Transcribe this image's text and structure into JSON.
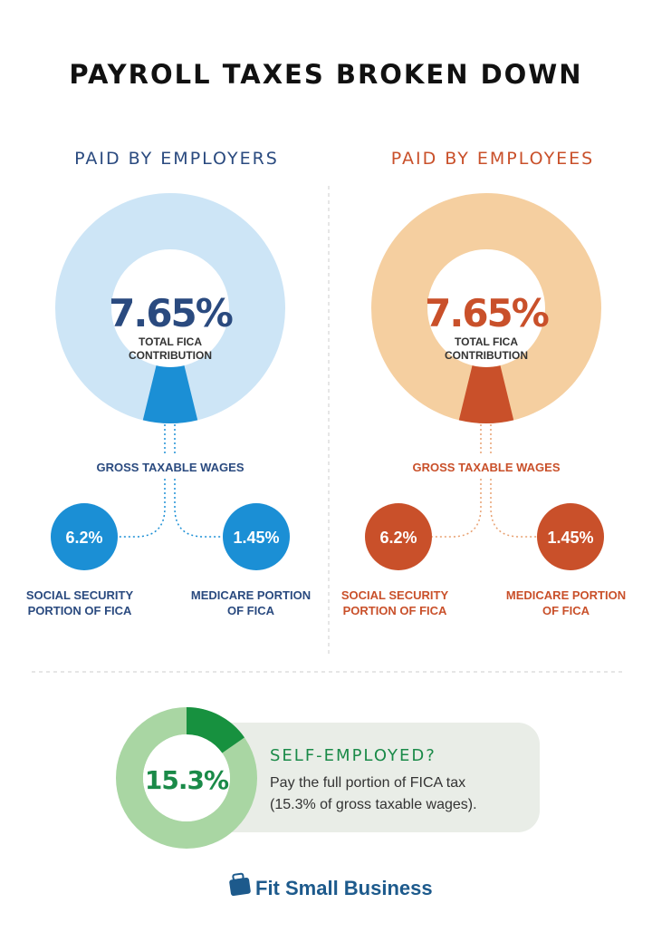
{
  "title": "PAYROLL TAXES BROKEN DOWN",
  "employers": {
    "heading": "PAID BY EMPLOYERS",
    "total": "7.65%",
    "total_percent": 7.65,
    "total_label_1": "TOTAL FICA",
    "total_label_2": "CONTRIBUTION",
    "wages_label": "GROSS TAXABLE WAGES",
    "ss_value": "6.2%",
    "ss_label_1": "SOCIAL SECURITY",
    "ss_label_2": "PORTION OF FICA",
    "med_value": "1.45%",
    "med_label_1": "MEDICARE PORTION",
    "med_label_2": "OF FICA",
    "colors": {
      "text": "#2a4a7f",
      "ring": "#cde5f6",
      "accent": "#1b8fd5"
    }
  },
  "employees": {
    "heading": "PAID BY EMPLOYEES",
    "total": "7.65%",
    "total_percent": 7.65,
    "total_label_1": "TOTAL FICA",
    "total_label_2": "CONTRIBUTION",
    "wages_label": "GROSS TAXABLE WAGES",
    "ss_value": "6.2%",
    "ss_label_1": "SOCIAL SECURITY",
    "ss_label_2": "PORTION OF FICA",
    "med_value": "1.45%",
    "med_label_1": "MEDICARE PORTION",
    "med_label_2": "OF FICA",
    "colors": {
      "text": "#c9502a",
      "ring": "#f5cfa0",
      "accent": "#c9502a"
    }
  },
  "self_employed": {
    "value": "15.3%",
    "percent": 15.3,
    "heading": "SELF-EMPLOYED?",
    "line_1": "Pay the full portion of FICA tax",
    "line_2": "(15.3% of gross taxable wages).",
    "colors": {
      "ring": "#a9d6a3",
      "accent": "#17913f",
      "text": "#1a8a48",
      "box": "#e9ede7"
    }
  },
  "logo": {
    "text": "Fit Small Business",
    "icon": "briefcase-icon",
    "color": "#1d5a8c"
  }
}
